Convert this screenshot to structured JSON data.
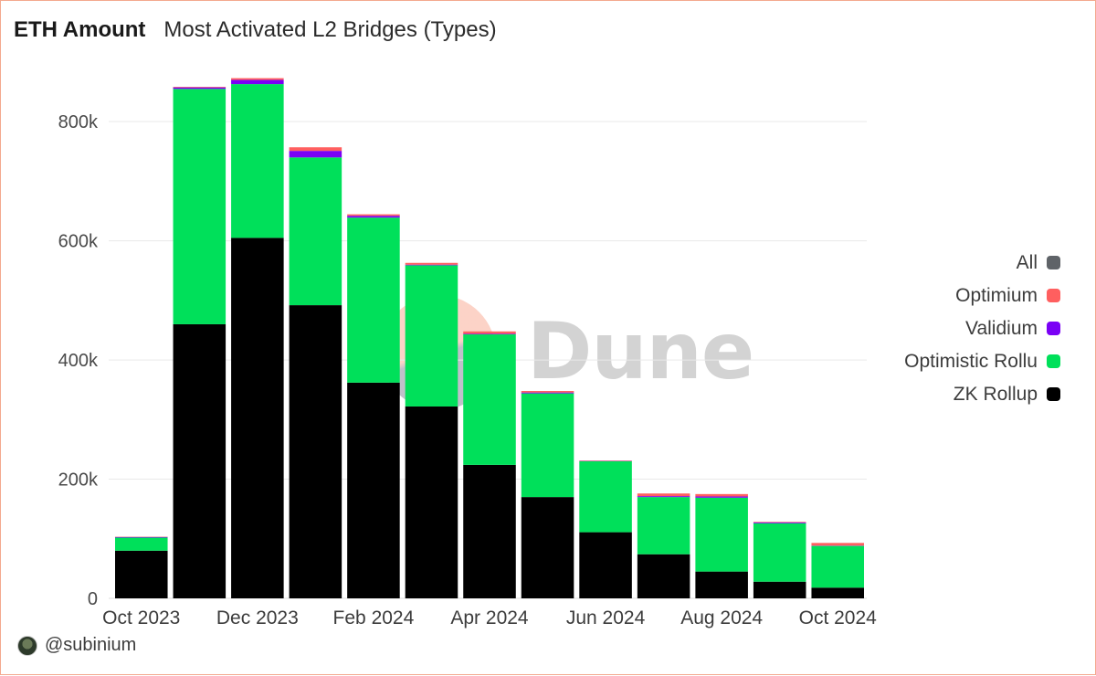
{
  "header": {
    "title": "ETH Amount",
    "subtitle": "Most Activated L2 Bridges (Types)"
  },
  "footer": {
    "author": "@subinium"
  },
  "watermark": {
    "text": "Dune"
  },
  "legend": {
    "items": [
      {
        "label": "All",
        "color": "#5f6368"
      },
      {
        "label": "Optimium",
        "color": "#ff5f5f"
      },
      {
        "label": "Validium",
        "color": "#7a00f5"
      },
      {
        "label": "Optimistic Rollu",
        "color": "#00e05a"
      },
      {
        "label": "ZK Rollup",
        "color": "#000000"
      }
    ]
  },
  "chart_data": {
    "type": "bar",
    "stacked": true,
    "categories": [
      "Oct 2023",
      "Nov 2023",
      "Dec 2023",
      "Jan 2024",
      "Feb 2024",
      "Mar 2024",
      "Apr 2024",
      "May 2024",
      "Jun 2024",
      "Jul 2024",
      "Aug 2024",
      "Sep 2024",
      "Oct 2024"
    ],
    "x_tick_labels": [
      "Oct 2023",
      "Dec 2023",
      "Feb 2024",
      "Apr 2024",
      "Jun 2024",
      "Aug 2024",
      "Oct 2024"
    ],
    "y_ticks": [
      0,
      200000,
      400000,
      600000,
      800000
    ],
    "y_tick_labels": [
      "0",
      "200k",
      "400k",
      "600k",
      "800k"
    ],
    "ylim": [
      0,
      880000
    ],
    "grid": true,
    "legend_position": "right",
    "series": [
      {
        "name": "ZK Rollup",
        "color": "#000000",
        "values": [
          80000,
          460000,
          605000,
          492000,
          362000,
          322000,
          224000,
          170000,
          111000,
          74000,
          45000,
          28000,
          18000
        ]
      },
      {
        "name": "Optimistic Rollu",
        "color": "#00e05a",
        "values": [
          22000,
          395000,
          258000,
          248000,
          277000,
          237000,
          219000,
          174000,
          119000,
          96000,
          124000,
          98000,
          70000
        ]
      },
      {
        "name": "Validium",
        "color": "#7a00f5",
        "values": [
          1000,
          2500,
          7000,
          11000,
          3000,
          1000,
          1000,
          1500,
          500,
          1500,
          2000,
          1500,
          500
        ]
      },
      {
        "name": "Optimium",
        "color": "#ff5f5f",
        "values": [
          500,
          1000,
          3000,
          6000,
          2500,
          3000,
          4000,
          2500,
          800,
          4500,
          4000,
          1000,
          4500
        ]
      }
    ]
  }
}
